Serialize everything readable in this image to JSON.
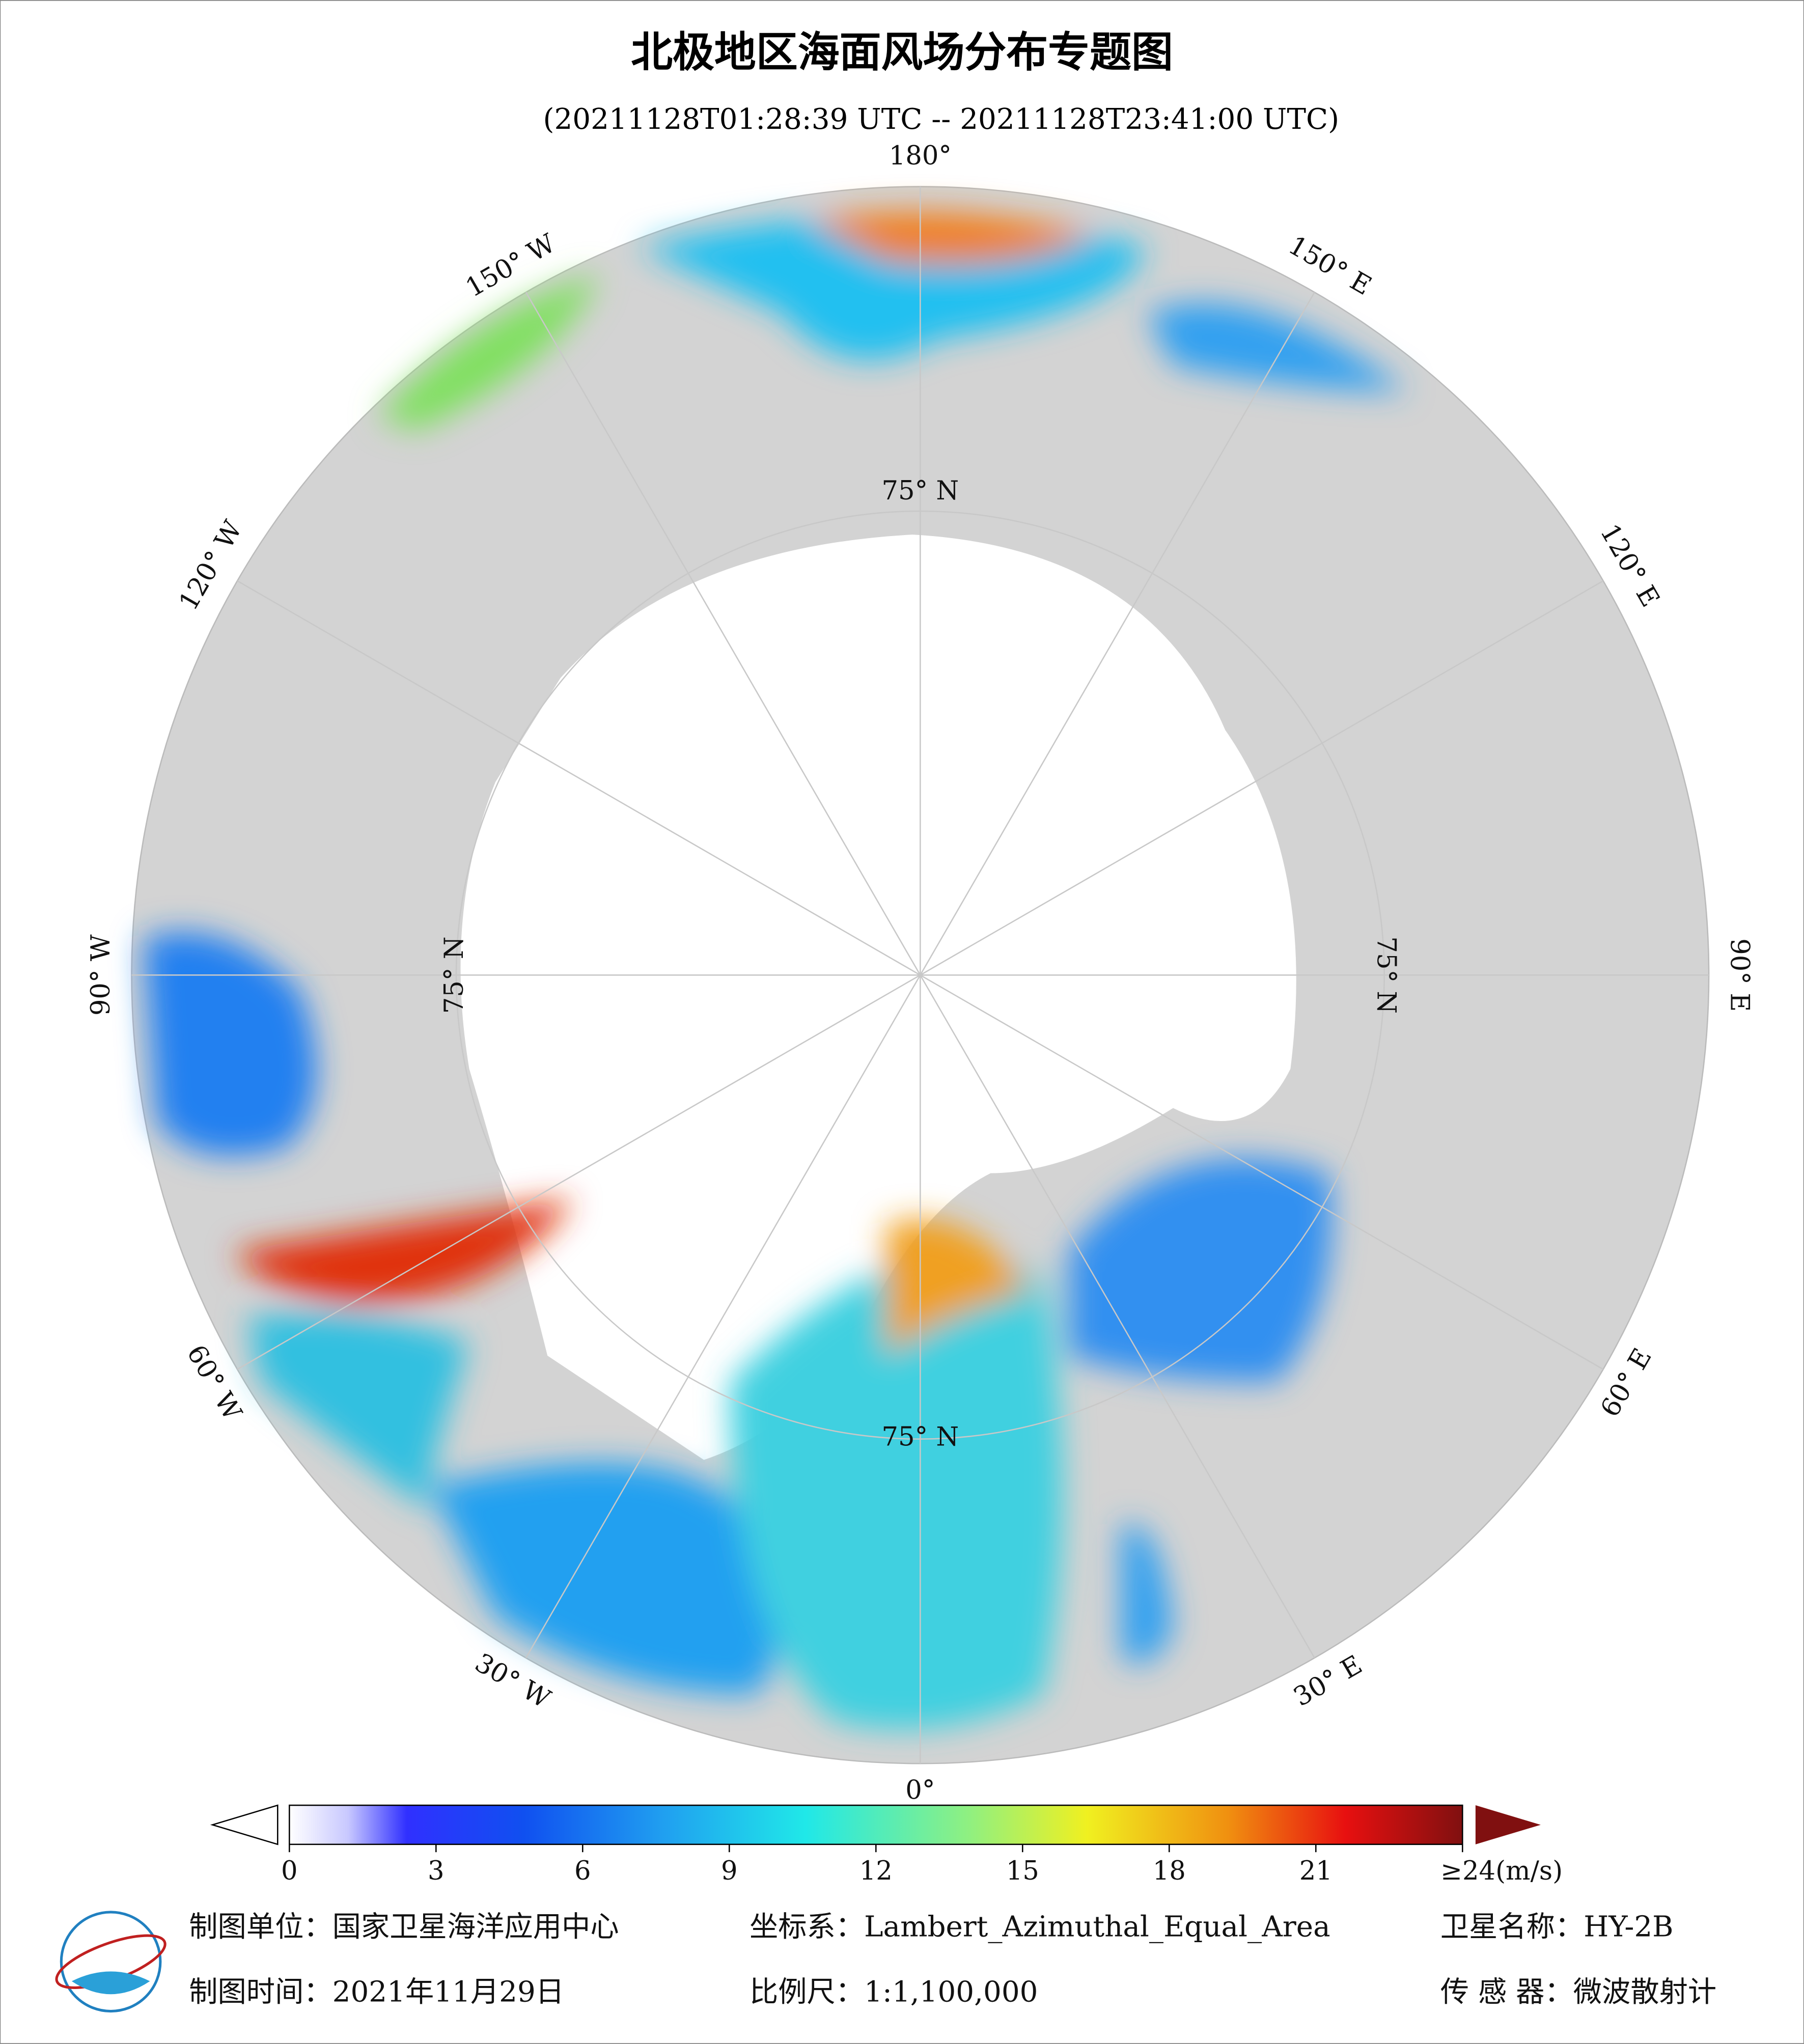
{
  "header": {
    "title": "北极地区海面风场分布专题图",
    "subtitle": "(20211128T01:28:39 UTC -- 20211128T23:41:00 UTC)"
  },
  "map": {
    "meridian_labels": [
      "180°",
      "150° E",
      "120° E",
      "90° E",
      "60° E",
      "30° E",
      "0°",
      "30° W",
      "60° W",
      "90° W",
      "120° W",
      "150° W"
    ],
    "parallel_labels": [
      "75° N",
      "75° N",
      "75° N",
      "75° N"
    ]
  },
  "colorbar": {
    "range": [
      0,
      24
    ],
    "ticks": [
      0,
      3,
      6,
      9,
      12,
      15,
      18,
      21,
      {
        "value": 24,
        "label": "≥24(m/s)"
      }
    ]
  },
  "footer": {
    "unit": "制图单位：国家卫星海洋应用中心",
    "projection": "坐标系：Lambert_Azimuthal_Equal_Area",
    "satellite": "卫星名称：HY-2B",
    "date": "制图时间：2021年11月29日",
    "scale": "比例尺：1:1,100,000",
    "sensor": "传 感 器：微波散射计"
  }
}
